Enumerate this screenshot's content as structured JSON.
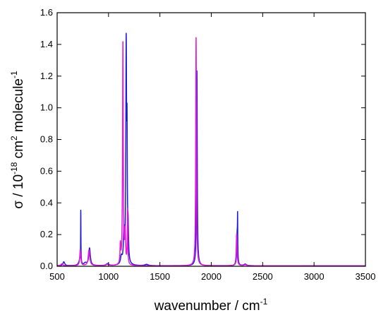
{
  "chart_data": {
    "type": "line",
    "xlabel": "wavenumber / cm",
    "xlabel_sup": "-1",
    "ylabel_parts": [
      "σ / 10",
      "-18",
      " cm",
      "2",
      " molecule",
      "-1"
    ],
    "xlim": [
      500,
      3500
    ],
    "ylim": [
      0.0,
      1.6
    ],
    "xticks": [
      500,
      1000,
      1500,
      2000,
      2500,
      3000,
      3500
    ],
    "yticks": [
      0.0,
      0.2,
      0.4,
      0.6,
      0.8,
      1.0,
      1.2,
      1.4,
      1.6
    ],
    "ytick_labels": [
      "0.0",
      "0.2",
      "0.4",
      "0.6",
      "0.8",
      "1.0",
      "1.2",
      "1.4",
      "1.6"
    ],
    "grid": false,
    "series": [
      {
        "color": "#1a1adb",
        "peaks": [
          {
            "center": 565,
            "height": 0.025,
            "width": 10
          },
          {
            "center": 722,
            "height": 0.04,
            "width": 12
          },
          {
            "center": 730,
            "height": 0.32,
            "width": 1.5
          },
          {
            "center": 775,
            "height": 0.015,
            "width": 15
          },
          {
            "center": 815,
            "height": 0.11,
            "width": 9
          },
          {
            "center": 990,
            "height": 0.012,
            "width": 15
          },
          {
            "center": 1125,
            "height": 0.05,
            "width": 10
          },
          {
            "center": 1150,
            "height": 0.2,
            "width": 6
          },
          {
            "center": 1172,
            "height": 1.35,
            "width": 4
          },
          {
            "center": 1180,
            "height": 0.7,
            "width": 3
          },
          {
            "center": 1190,
            "height": 0.2,
            "width": 5
          },
          {
            "center": 1370,
            "height": 0.008,
            "width": 20
          },
          {
            "center": 1860,
            "height": 1.23,
            "width": 4
          },
          {
            "center": 2252,
            "height": 0.2,
            "width": 5
          },
          {
            "center": 2256,
            "height": 0.22,
            "width": 1.5
          },
          {
            "center": 2330,
            "height": 0.01,
            "width": 15
          }
        ]
      },
      {
        "color": "#e619d9",
        "peaks": [
          {
            "center": 545,
            "height": 0.012,
            "width": 10
          },
          {
            "center": 725,
            "height": 0.1,
            "width": 6
          },
          {
            "center": 810,
            "height": 0.1,
            "width": 9
          },
          {
            "center": 990,
            "height": 0.008,
            "width": 15
          },
          {
            "center": 1115,
            "height": 0.12,
            "width": 4
          },
          {
            "center": 1140,
            "height": 1.4,
            "width": 4
          },
          {
            "center": 1162,
            "height": 0.2,
            "width": 5
          },
          {
            "center": 1185,
            "height": 0.34,
            "width": 3
          },
          {
            "center": 1852,
            "height": 1.44,
            "width": 4
          },
          {
            "center": 2247,
            "height": 0.2,
            "width": 5
          },
          {
            "center": 2330,
            "height": 0.006,
            "width": 15
          }
        ]
      }
    ]
  }
}
